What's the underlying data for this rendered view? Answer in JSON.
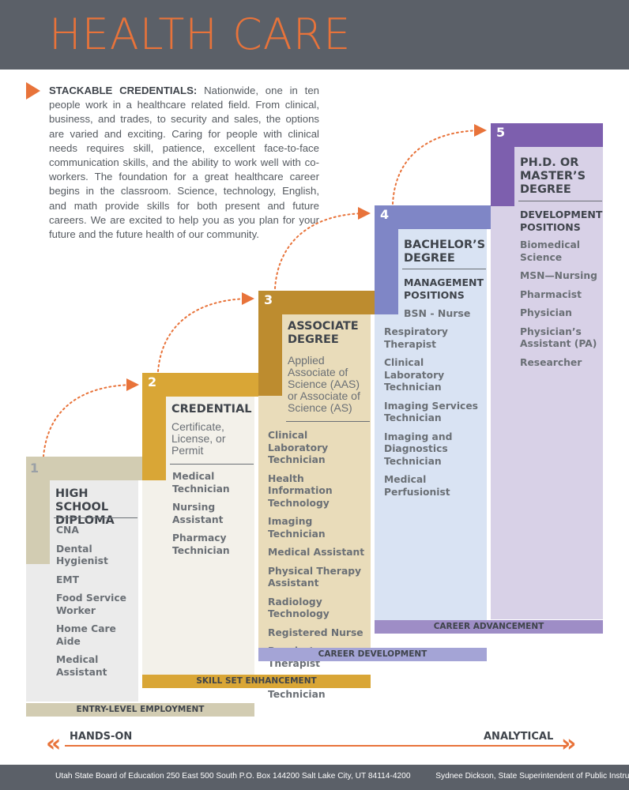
{
  "header": {
    "title": "HEALTH CARE",
    "bg_color": "#5b6068",
    "title_color": "#e8733a"
  },
  "intro": {
    "lead": "STACKABLE CREDENTIALS:",
    "text": " Nationwide, one in ten people work in a healthcare related field. From clinical, business, and trades, to security and sales, the options are varied and exciting. Caring for people with clinical needs requires skill, patience, excellent face-to-face communication skills, and the ability to work well with co-workers. The foundation for a great healthcare career begins in the classroom. Science, technology, English, and math provide skills for both present and future careers. We are excited to help you as you plan for your future and the future health of our community."
  },
  "steps": [
    {
      "number": "1",
      "heading": "HIGH SCHOOL DIPLOMA",
      "items": [
        "CNA",
        "Dental Hygienist",
        "EMT",
        "Food Service Worker",
        "Home Care Aide",
        "Medical Assistant"
      ],
      "footer": "ENTRY-LEVEL EMPLOYMENT",
      "color": "#d2ccb2",
      "panel_color": "#ebebeb"
    },
    {
      "number": "2",
      "heading": "CREDENTIAL",
      "sub": "Certificate, License, or Permit",
      "items": [
        "Medical Technician",
        "Nursing Assistant",
        "Pharmacy Technician"
      ],
      "footer": "SKILL SET ENHANCEMENT",
      "color": "#d9a636",
      "panel_color": "#f3f1ea"
    },
    {
      "number": "3",
      "heading": "ASSOCIATE DEGREE",
      "sub": "Applied Associate of Science (AAS) or Associate of Science (AS)",
      "items": [
        "Clinical Laboratory Technician",
        "Health Information Technology",
        "Imaging Technician",
        "Medical Assistant",
        "Physical Therapy Assistant",
        "Radiology Technology",
        "Registered Nurse",
        "Respiratory Therapist",
        "Surgical Technician"
      ],
      "footer": "CAREER DEVELOPMENT",
      "color": "#bd8c2f",
      "panel_color": "#e9dcba",
      "footer_color": "#a4a4d6"
    },
    {
      "number": "4",
      "heading": "BACHELOR’S DEGREE",
      "subtitle": "MANAGEMENT POSITIONS",
      "sub": "BSN - Nurse",
      "items": [
        "Respiratory Therapist",
        "Clinical Laboratory Technician",
        "Imaging Services Technician",
        "Imaging and Diagnostics Technician",
        "Medical Perfusionist"
      ],
      "footer": "CAREER ADVANCEMENT",
      "color": "#7f86c6",
      "panel_color": "#d9e3f3",
      "footer_color": "#9e8dc6"
    },
    {
      "number": "5",
      "heading": "PH.D. OR MASTER’S DEGREE",
      "subtitle": "DEVELOPMENT POSITIONS",
      "items": [
        "Biomedical Science",
        "MSN—Nursing",
        "Pharmacist",
        "Physician",
        "Physician’s Assistant (PA)",
        "Researcher"
      ],
      "color": "#7d5fae",
      "panel_color": "#d8d1e7"
    }
  ],
  "axis": {
    "left": "HANDS-ON",
    "right": "ANALYTICAL",
    "chevron_left": "«",
    "chevron_right": "»",
    "accent": "#e8733a"
  },
  "footer": {
    "org": "Utah State Board of Education  250 East 500 South  P.O. Box 144200  Salt Lake City, UT 84114-4200",
    "official": "Sydnee Dickson, State Superintendent of Public Instruction"
  }
}
